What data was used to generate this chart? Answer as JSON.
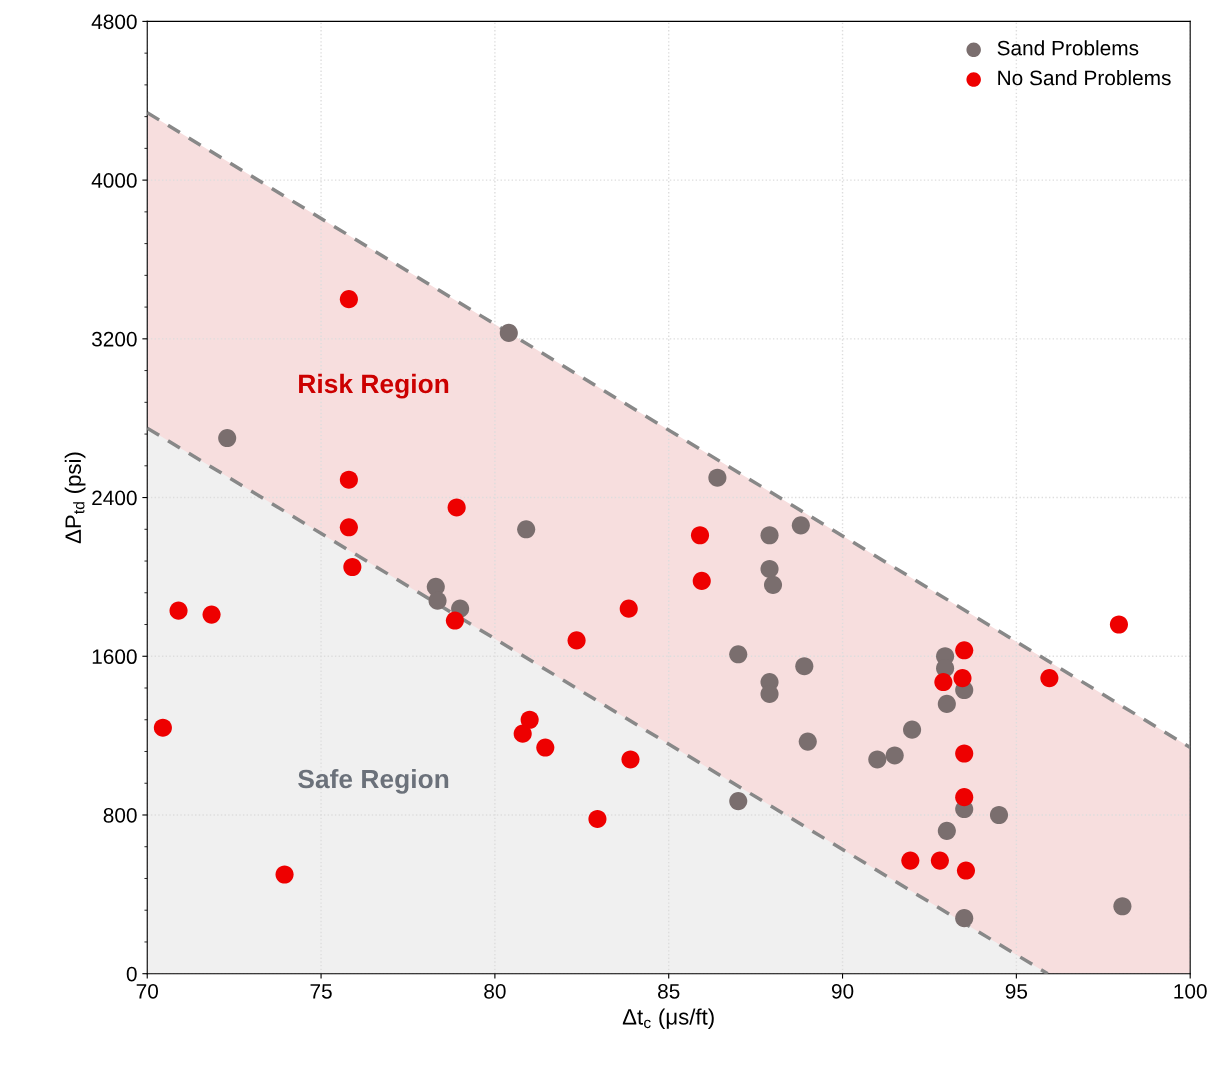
{
  "chart_data": {
    "type": "scatter",
    "xlabel": "Δt$_{c}$ (μs/ft)",
    "ylabel": "ΔP$_{td}$ (psi)",
    "xlim": [
      70,
      100
    ],
    "xticks": [
      70,
      75,
      80,
      85,
      90,
      95,
      100
    ],
    "ylim": [
      0,
      4800
    ],
    "yticks": [
      0,
      800,
      1600,
      2400,
      3200,
      4000,
      4800
    ],
    "grid": true,
    "legend": "top right",
    "marker": "circle",
    "series": [
      {
        "type": "area",
        "color": "#f7dede",
        "line_style": "dashed",
        "marker": "none",
        "x": [
          70,
          100
        ],
        "values": [
          4340,
          1140
        ]
      },
      {
        "type": "area",
        "color": "#f0f0f0",
        "line_style": "dashed",
        "marker": "none",
        "x": [
          70,
          95.9
        ],
        "values": [
          2750,
          0
        ]
      },
      {
        "name": "Sand Problems",
        "color": "#7a6e6e",
        "x": [
          80.4,
          72.3,
          86.4,
          80.9,
          87.9,
          88.8,
          87.9,
          88.0,
          78.3,
          78.35,
          79.0,
          87.0,
          87.9,
          87.9,
          88.9,
          92.95,
          92.95,
          93.0,
          93.5,
          92.0,
          91.5,
          91.0,
          89.0,
          87.0,
          93.0,
          93.5,
          94.5,
          93.5,
          98.05
        ],
        "values": [
          3230,
          2700,
          2500,
          2240,
          2210,
          2260,
          2040,
          1960,
          1950,
          1880,
          1840,
          1610,
          1470,
          1410,
          1550,
          1600,
          1540,
          1360,
          1430,
          1230,
          1100,
          1080,
          1170,
          870,
          720,
          830,
          800,
          280,
          340
        ]
      },
      {
        "name": "No Sand Problems",
        "color": "#ee0000",
        "x": [
          75.8,
          75.8,
          75.8,
          75.9,
          78.9,
          78.85,
          70.9,
          71.85,
          70.45,
          73.95,
          81.0,
          80.8,
          81.45,
          83.9,
          82.95,
          82.35,
          83.85,
          85.9,
          85.95,
          93.5,
          92.9,
          93.45,
          93.5,
          93.5,
          91.95,
          92.8,
          93.55,
          95.95,
          97.95
        ],
        "values": [
          3400,
          2490,
          2250,
          2050,
          2350,
          1780,
          1830,
          1810,
          1240,
          500,
          1280,
          1210,
          1140,
          1080,
          780,
          1680,
          1840,
          2210,
          1980,
          1630,
          1470,
          1490,
          1110,
          890,
          570,
          570,
          520,
          1490,
          1760
        ]
      }
    ],
    "annotations": [
      "Risk Region",
      "Safe Region"
    ]
  }
}
